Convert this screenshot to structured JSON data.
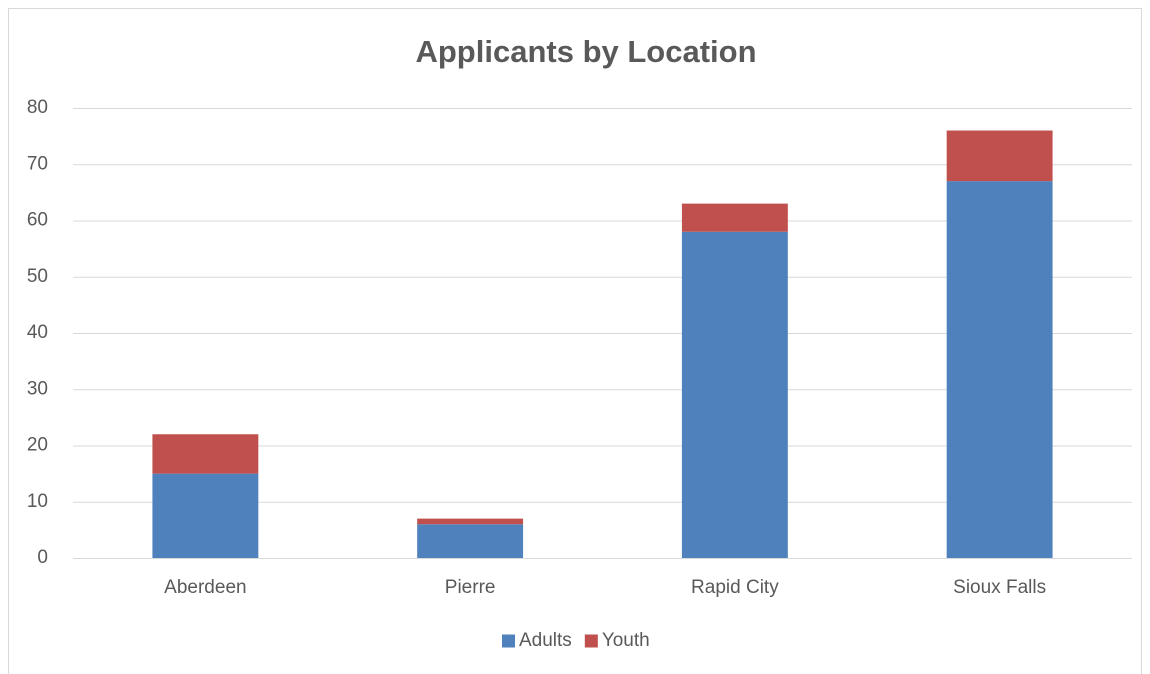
{
  "chart_data": {
    "type": "bar",
    "stacked": true,
    "title": "Applicants by Location",
    "categories": [
      "Aberdeen",
      "Pierre",
      "Rapid City",
      "Sioux Falls"
    ],
    "series": [
      {
        "name": "Adults",
        "color": "#4f81bd",
        "values": [
          15,
          6,
          58,
          67
        ]
      },
      {
        "name": "Youth",
        "color": "#c0504d",
        "values": [
          7,
          1,
          5,
          9
        ]
      }
    ],
    "ylim": [
      0,
      80
    ],
    "yticks": [
      0,
      10,
      20,
      30,
      40,
      50,
      60,
      70,
      80
    ],
    "grid": true,
    "legend": "bottom"
  }
}
